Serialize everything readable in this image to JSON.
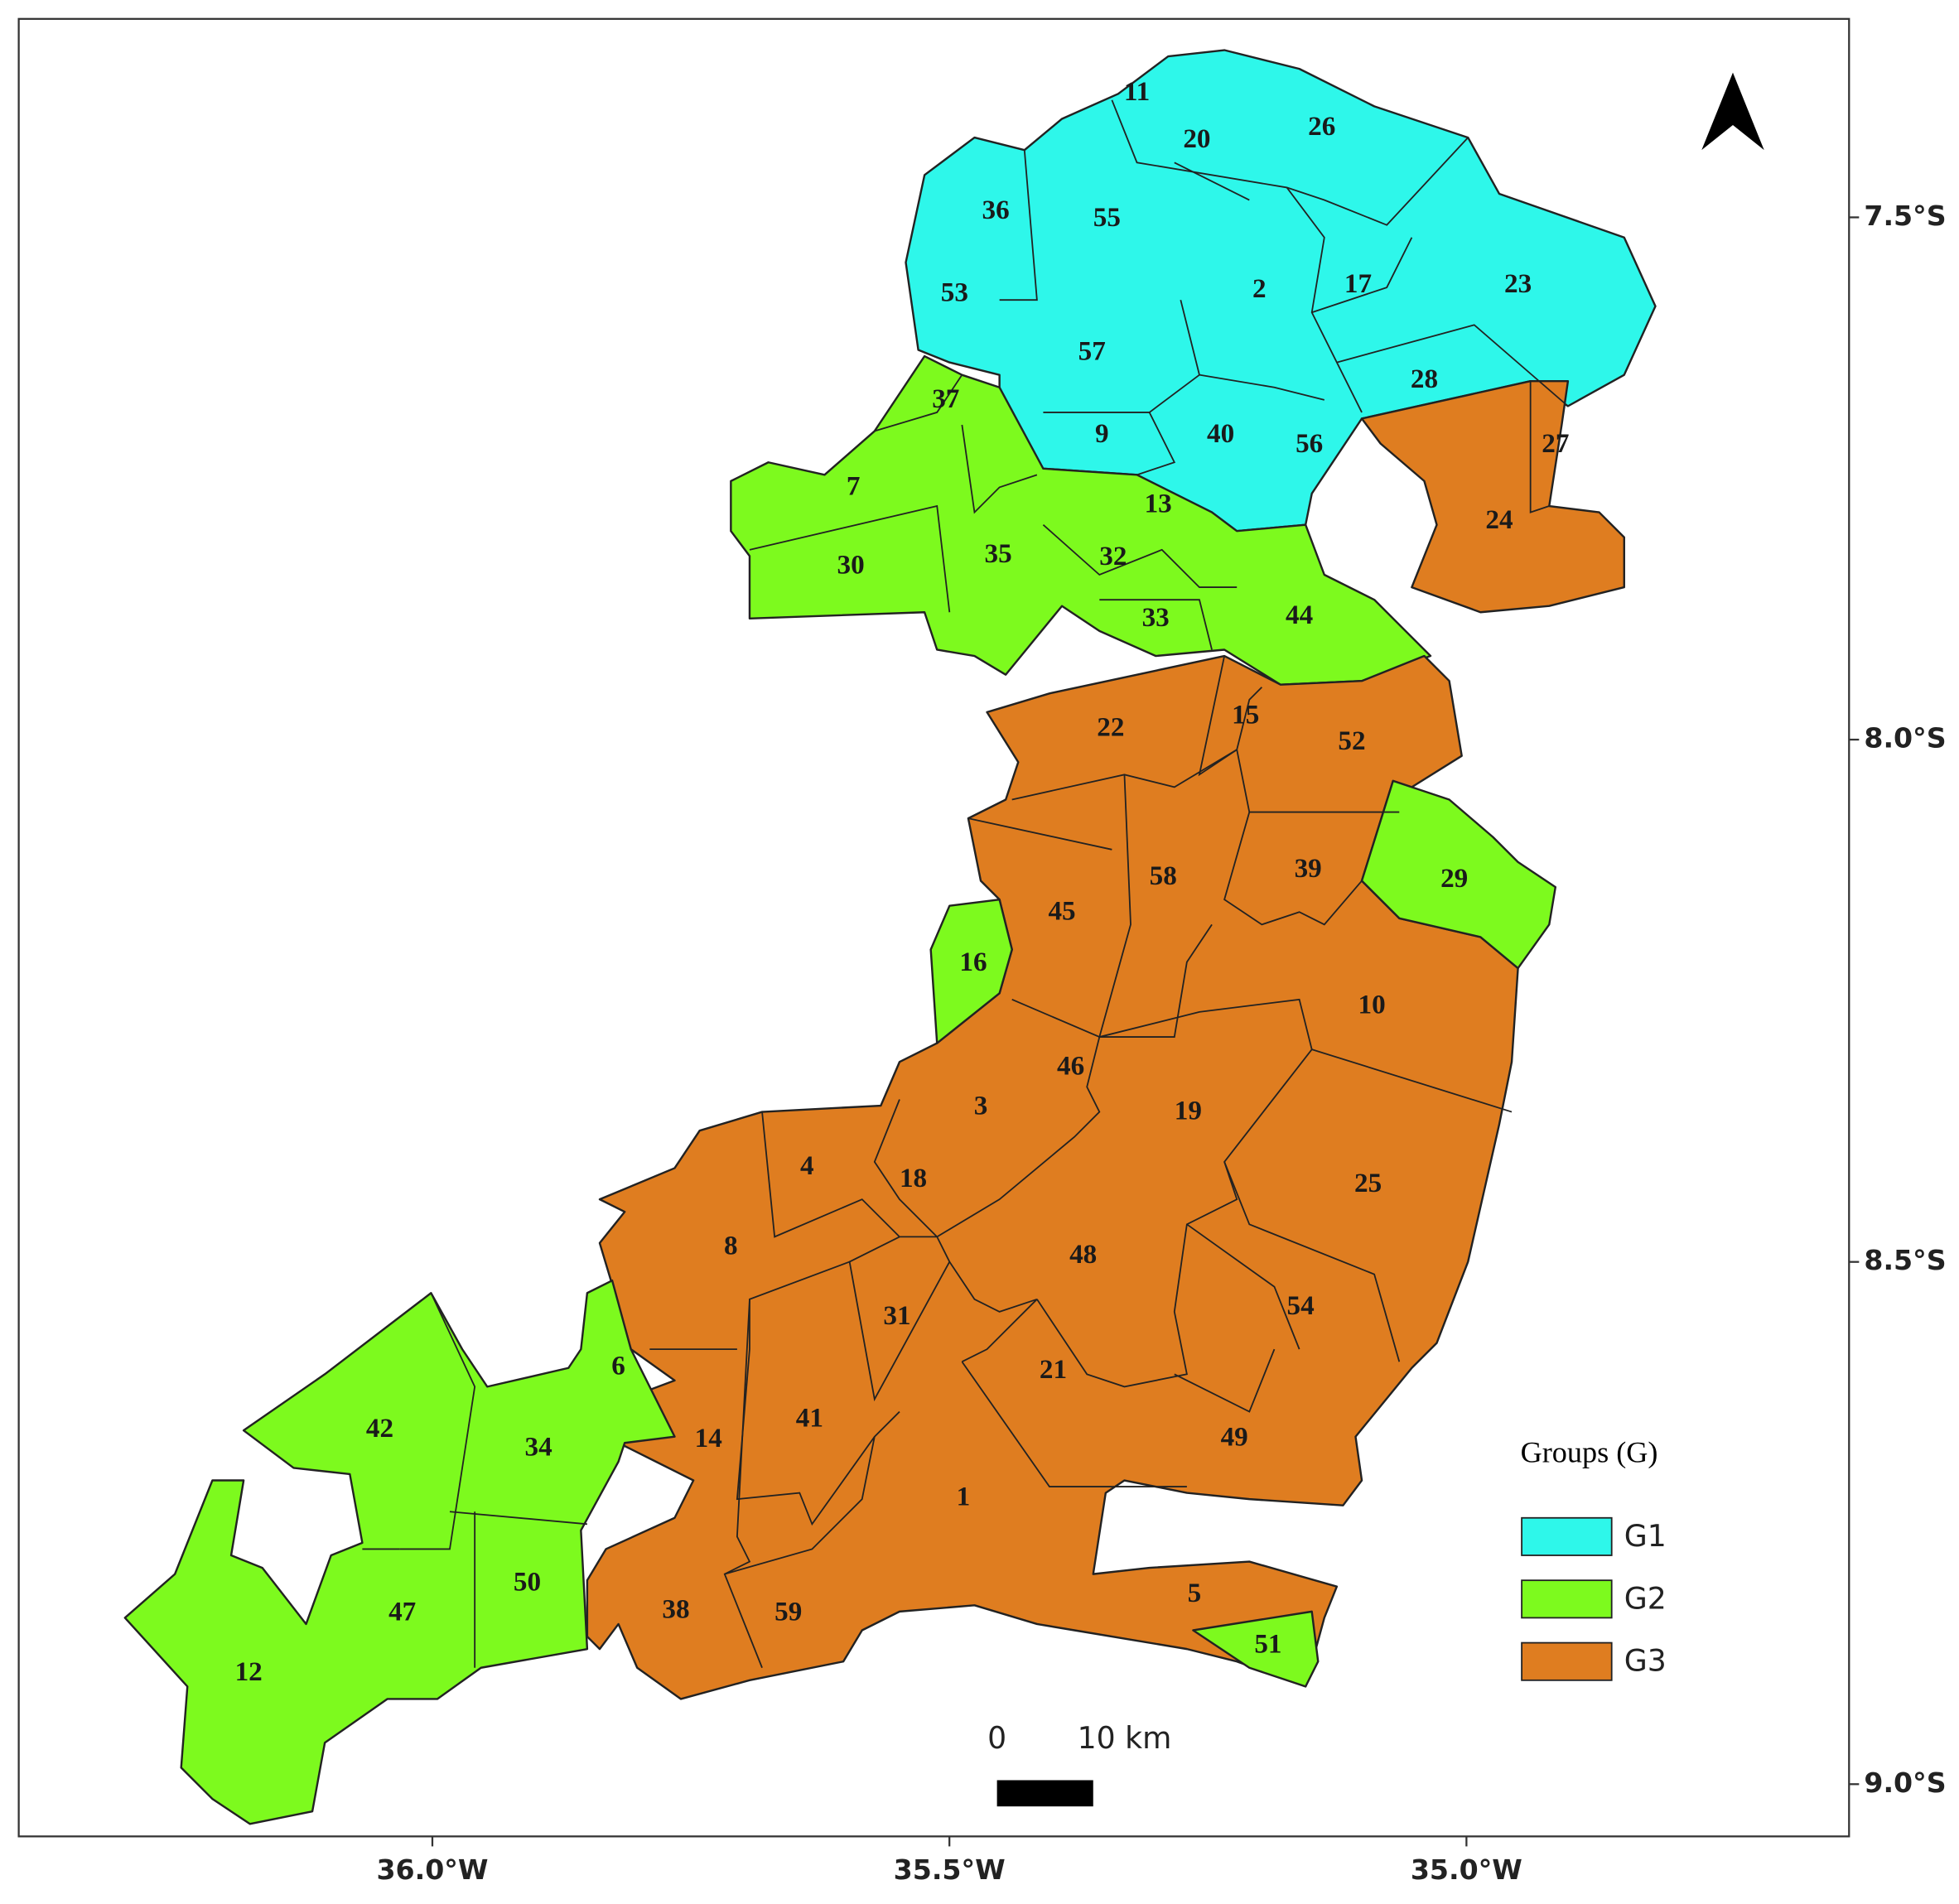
{
  "map": {
    "type": "choropleth",
    "x_axis": {
      "xlim": [
        -36.4,
        -34.63
      ],
      "xticks": [
        {
          "value": -36.0,
          "label": "36.0°W"
        },
        {
          "value": -35.5,
          "label": "35.5°W"
        },
        {
          "value": -35.0,
          "label": "35.0°W"
        }
      ]
    },
    "y_axis": {
      "ylim": [
        -9.05,
        -7.31
      ],
      "yticks": [
        {
          "value": -7.5,
          "label": "7.5°S"
        },
        {
          "value": -8.0,
          "label": "8.0°S"
        },
        {
          "value": -8.5,
          "label": "8.5°S"
        },
        {
          "value": -9.0,
          "label": "9.0°S"
        }
      ]
    },
    "legend": {
      "title": "Groups (G)",
      "entries": [
        {
          "name": "G1",
          "color": "#2ef7ea"
        },
        {
          "name": "G2",
          "color": "#7dfa1e"
        },
        {
          "name": "G3",
          "color": "#df7d20"
        }
      ]
    },
    "scale_bar": {
      "labels": [
        "0",
        "10 km"
      ]
    },
    "regions": [
      {
        "label": "11",
        "group": "G1"
      },
      {
        "label": "20",
        "group": "G1"
      },
      {
        "label": "26",
        "group": "G1"
      },
      {
        "label": "36",
        "group": "G1"
      },
      {
        "label": "55",
        "group": "G1"
      },
      {
        "label": "2",
        "group": "G1"
      },
      {
        "label": "17",
        "group": "G1"
      },
      {
        "label": "23",
        "group": "G1"
      },
      {
        "label": "53",
        "group": "G1"
      },
      {
        "label": "57",
        "group": "G1"
      },
      {
        "label": "28",
        "group": "G1"
      },
      {
        "label": "37",
        "group": "G2"
      },
      {
        "label": "9",
        "group": "G1"
      },
      {
        "label": "40",
        "group": "G1"
      },
      {
        "label": "56",
        "group": "G1"
      },
      {
        "label": "27",
        "group": "G3"
      },
      {
        "label": "7",
        "group": "G2"
      },
      {
        "label": "13",
        "group": "G2"
      },
      {
        "label": "24",
        "group": "G3"
      },
      {
        "label": "35",
        "group": "G2"
      },
      {
        "label": "32",
        "group": "G2"
      },
      {
        "label": "30",
        "group": "G2"
      },
      {
        "label": "33",
        "group": "G2"
      },
      {
        "label": "44",
        "group": "G2"
      },
      {
        "label": "22",
        "group": "G3"
      },
      {
        "label": "15",
        "group": "G3"
      },
      {
        "label": "52",
        "group": "G3"
      },
      {
        "label": "39",
        "group": "G3"
      },
      {
        "label": "58",
        "group": "G3"
      },
      {
        "label": "29",
        "group": "G2"
      },
      {
        "label": "45",
        "group": "G3"
      },
      {
        "label": "16",
        "group": "G2"
      },
      {
        "label": "10",
        "group": "G3"
      },
      {
        "label": "46",
        "group": "G3"
      },
      {
        "label": "3",
        "group": "G3"
      },
      {
        "label": "19",
        "group": "G3"
      },
      {
        "label": "25",
        "group": "G3"
      },
      {
        "label": "4",
        "group": "G3"
      },
      {
        "label": "18",
        "group": "G3"
      },
      {
        "label": "8",
        "group": "G3"
      },
      {
        "label": "48",
        "group": "G3"
      },
      {
        "label": "54",
        "group": "G3"
      },
      {
        "label": "31",
        "group": "G3"
      },
      {
        "label": "21",
        "group": "G3"
      },
      {
        "label": "6",
        "group": "G2"
      },
      {
        "label": "42",
        "group": "G2"
      },
      {
        "label": "41",
        "group": "G3"
      },
      {
        "label": "14",
        "group": "G3"
      },
      {
        "label": "34",
        "group": "G2"
      },
      {
        "label": "49",
        "group": "G3"
      },
      {
        "label": "1",
        "group": "G3"
      },
      {
        "label": "5",
        "group": "G3"
      },
      {
        "label": "50",
        "group": "G2"
      },
      {
        "label": "47",
        "group": "G2"
      },
      {
        "label": "38",
        "group": "G3"
      },
      {
        "label": "59",
        "group": "G3"
      },
      {
        "label": "51",
        "group": "G2"
      },
      {
        "label": "12",
        "group": "G2"
      }
    ]
  }
}
